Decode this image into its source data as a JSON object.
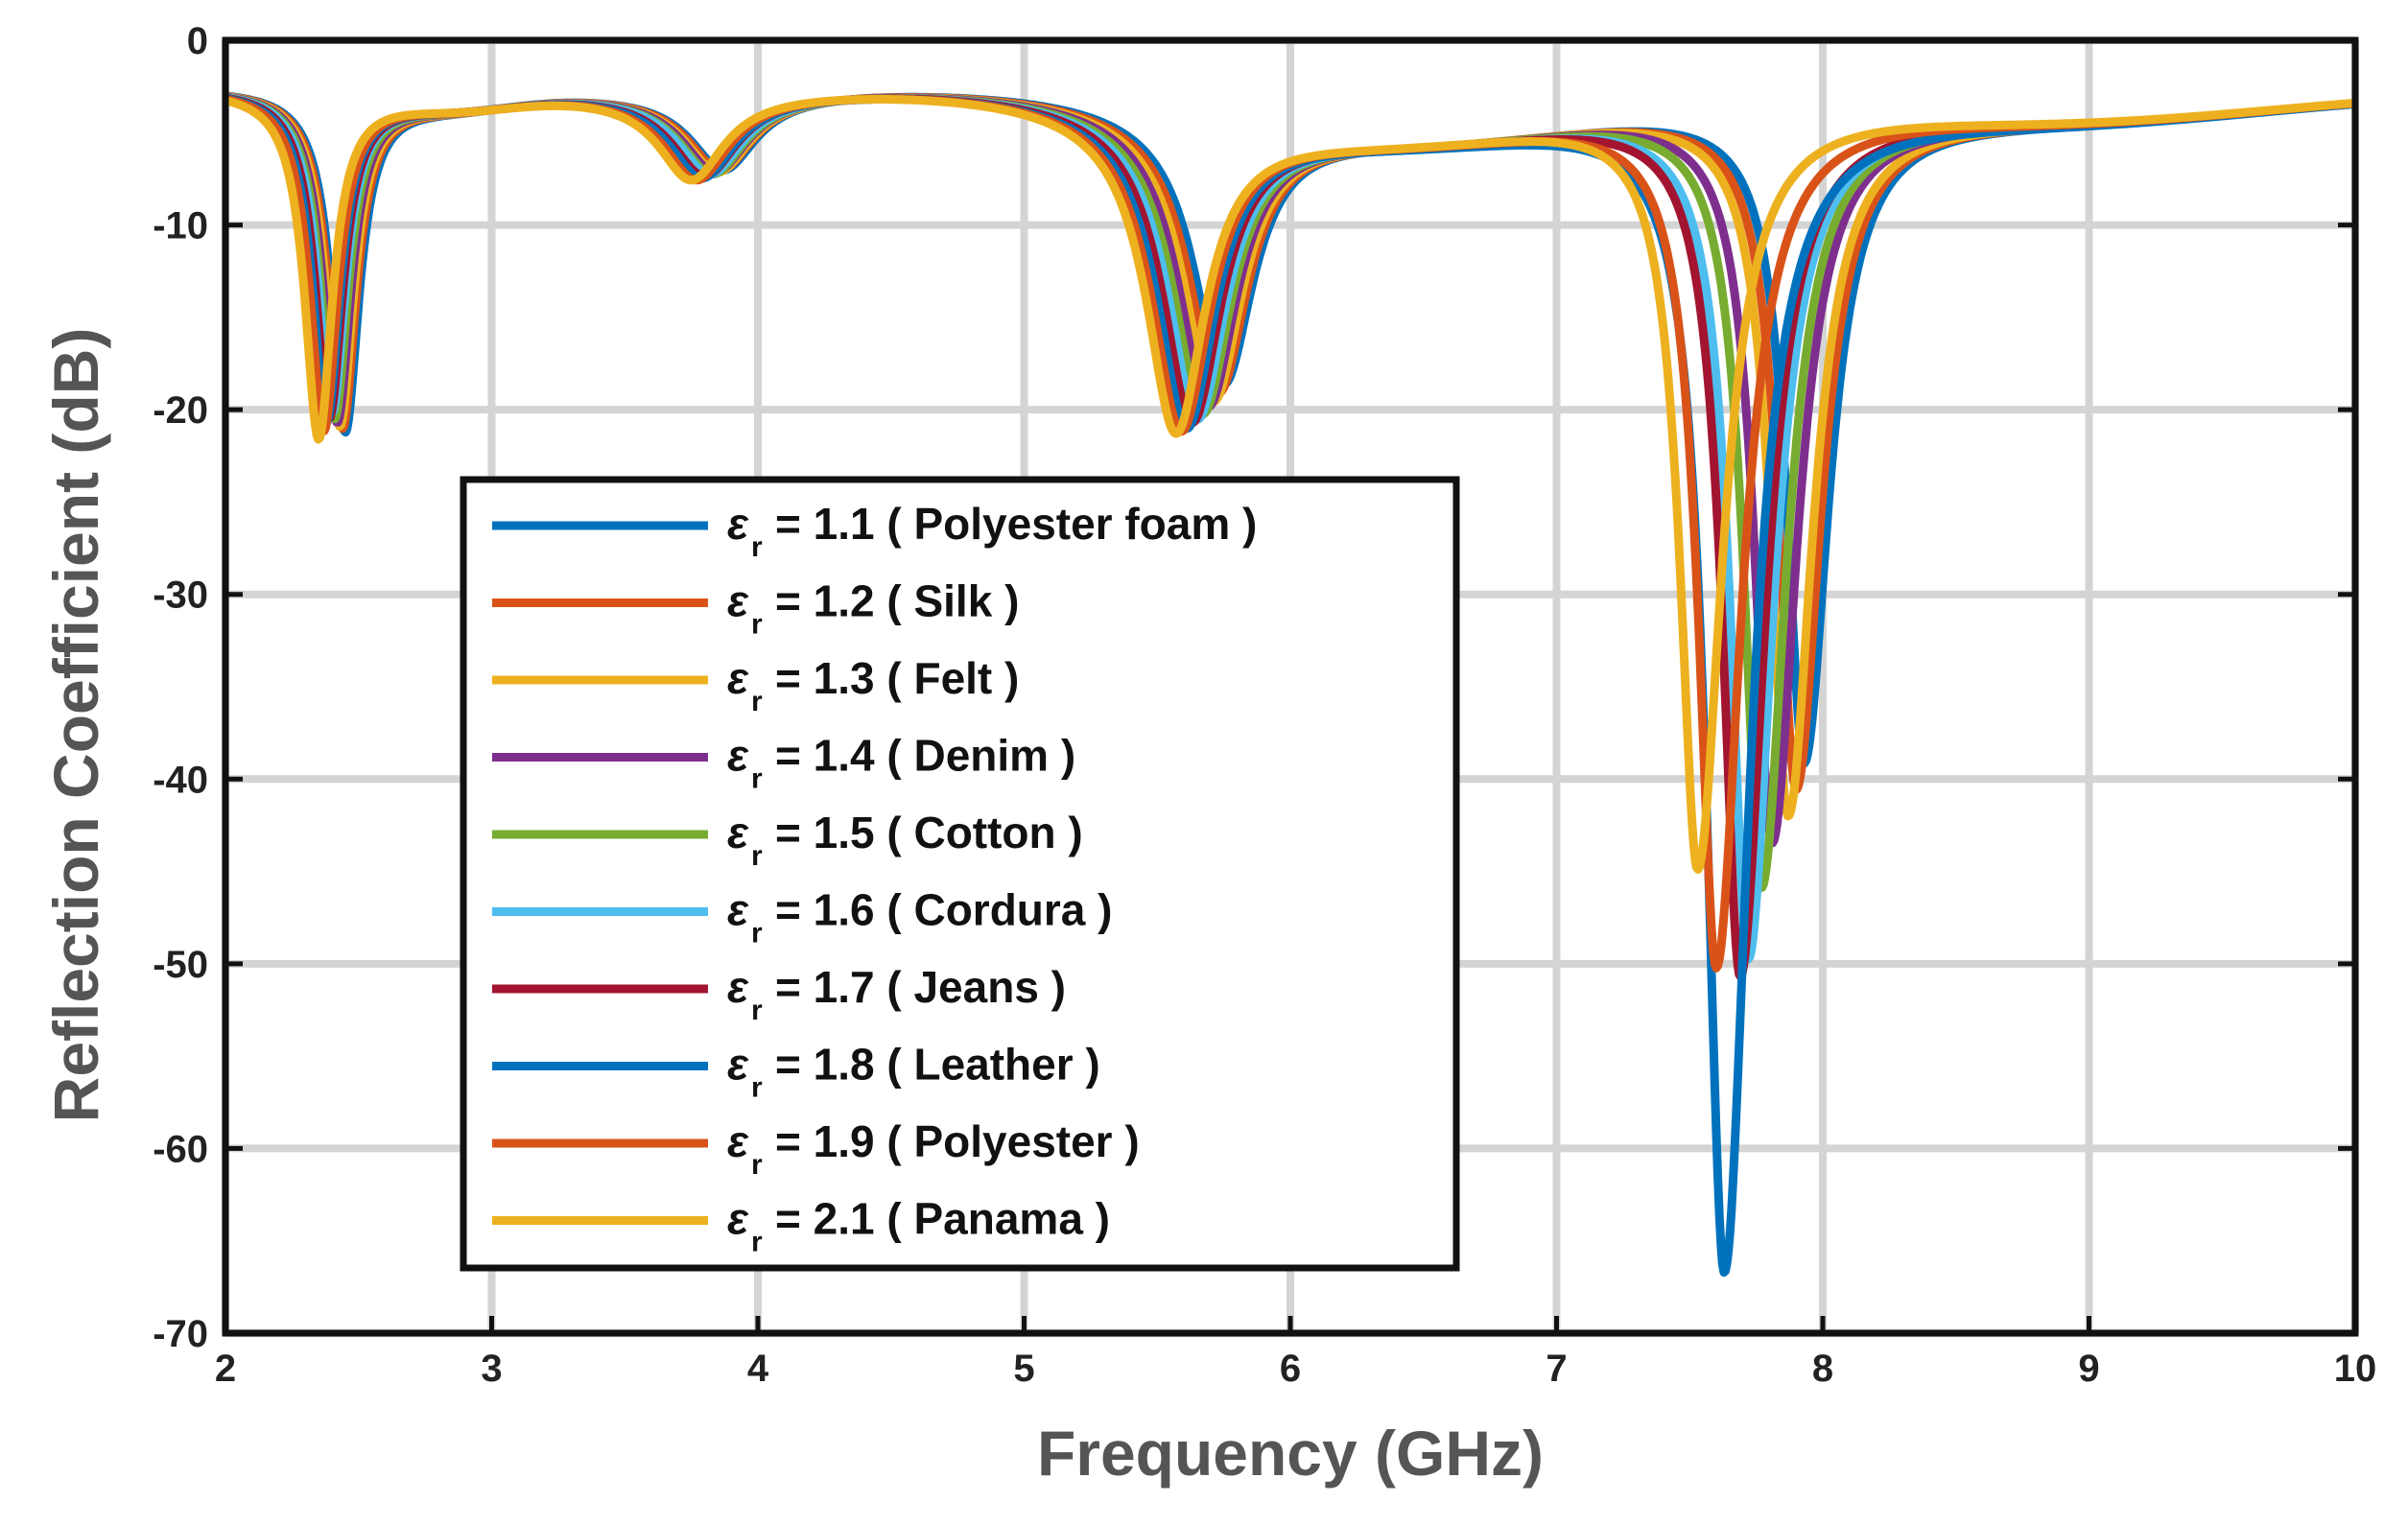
{
  "chart_data": {
    "type": "line",
    "title": "",
    "xlabel": "Frequency (GHz)",
    "ylabel": "Reflection Coefficient (dB)",
    "xlim": [
      2,
      10
    ],
    "ylim": [
      -70,
      0
    ],
    "xticks": [
      2,
      3,
      4,
      5,
      6,
      7,
      8,
      9,
      10
    ],
    "yticks": [
      0,
      -10,
      -20,
      -30,
      -40,
      -50,
      -60,
      -70
    ],
    "grid": true,
    "legend_position": "center-left",
    "legend_symbol": "ε",
    "legend_subscript": "r",
    "series": [
      {
        "name": "= 1.1 ( Polyester foam )",
        "color": "#0072BD",
        "eps": 1.1,
        "dips": [
          [
            2.45,
            -21.5
          ],
          [
            3.87,
            -6.8
          ],
          [
            5.75,
            -17.5
          ],
          [
            7.93,
            -39
          ]
        ]
      },
      {
        "name": "= 1.2 ( Silk )",
        "color": "#D95319",
        "eps": 1.2,
        "dips": [
          [
            2.44,
            -21.3
          ],
          [
            3.86,
            -6.8
          ],
          [
            5.73,
            -18
          ],
          [
            7.9,
            -40.5
          ]
        ]
      },
      {
        "name": "= 1.3 ( Felt )",
        "color": "#EDB120",
        "eps": 1.3,
        "dips": [
          [
            2.43,
            -21.2
          ],
          [
            3.85,
            -6.9
          ],
          [
            5.71,
            -18.5
          ],
          [
            7.87,
            -42
          ]
        ]
      },
      {
        "name": "= 1.4 ( Denim )",
        "color": "#7E2F8E",
        "eps": 1.4,
        "dips": [
          [
            2.42,
            -21
          ],
          [
            3.84,
            -6.9
          ],
          [
            5.69,
            -18.8
          ],
          [
            7.81,
            -43.5
          ]
        ]
      },
      {
        "name": "= 1.5 ( Cotton )",
        "color": "#77AC30",
        "eps": 1.5,
        "dips": [
          [
            2.41,
            -20.8
          ],
          [
            3.83,
            -7
          ],
          [
            5.67,
            -19.2
          ],
          [
            7.77,
            -46
          ]
        ]
      },
      {
        "name": "= 1.6 ( Cordura )",
        "color": "#4DBEEE",
        "eps": 1.6,
        "dips": [
          [
            2.4,
            -20.5
          ],
          [
            3.82,
            -7
          ],
          [
            5.65,
            -19.5
          ],
          [
            7.72,
            -50
          ]
        ]
      },
      {
        "name": "= 1.7 ( Jeans )",
        "color": "#A2142F",
        "eps": 1.7,
        "dips": [
          [
            2.39,
            -20.8
          ],
          [
            3.8,
            -7.1
          ],
          [
            5.63,
            -19.7
          ],
          [
            7.69,
            -51
          ]
        ]
      },
      {
        "name": "= 1.8 ( Leather )",
        "color": "#0072BD",
        "eps": 1.8,
        "dips": [
          [
            2.38,
            -21
          ],
          [
            3.79,
            -7.2
          ],
          [
            5.61,
            -20
          ],
          [
            7.63,
            -67.5
          ]
        ]
      },
      {
        "name": "= 1.9 ( Polyester )",
        "color": "#D95319",
        "eps": 1.9,
        "dips": [
          [
            2.37,
            -21.5
          ],
          [
            3.77,
            -7.3
          ],
          [
            5.59,
            -20.2
          ],
          [
            7.6,
            -50.5
          ]
        ]
      },
      {
        "name": "= 2.1 ( Panama )",
        "color": "#EDB120",
        "eps": 2.1,
        "dips": [
          [
            2.35,
            -22
          ],
          [
            3.75,
            -7.3
          ],
          [
            5.57,
            -20.3
          ],
          [
            7.53,
            -45
          ]
        ]
      }
    ]
  }
}
